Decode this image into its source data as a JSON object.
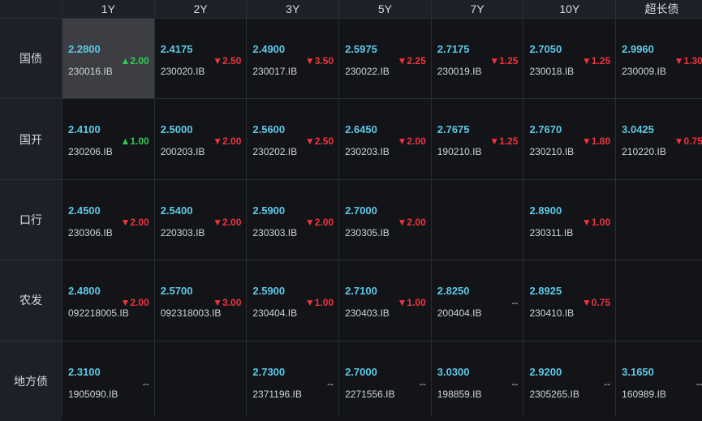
{
  "columns": [
    "1Y",
    "2Y",
    "3Y",
    "5Y",
    "7Y",
    "10Y",
    "超长债"
  ],
  "rows": [
    {
      "label": "国债",
      "cells": [
        {
          "yield": "2.2800",
          "code": "230016.IB",
          "change": "▲2.00",
          "dir": "up"
        },
        {
          "yield": "2.4175",
          "code": "230020.IB",
          "change": "▼2.50",
          "dir": "down"
        },
        {
          "yield": "2.4900",
          "code": "230017.IB",
          "change": "▼3.50",
          "dir": "down"
        },
        {
          "yield": "2.5975",
          "code": "230022.IB",
          "change": "▼2.25",
          "dir": "down"
        },
        {
          "yield": "2.7175",
          "code": "230019.IB",
          "change": "▼1.25",
          "dir": "down"
        },
        {
          "yield": "2.7050",
          "code": "230018.IB",
          "change": "▼1.25",
          "dir": "down"
        },
        {
          "yield": "2.9960",
          "code": "230009.IB",
          "change": "▼1.30",
          "dir": "down"
        }
      ]
    },
    {
      "label": "国开",
      "cells": [
        {
          "yield": "2.4100",
          "code": "230206.IB",
          "change": "▲1.00",
          "dir": "up"
        },
        {
          "yield": "2.5000",
          "code": "200203.IB",
          "change": "▼2.00",
          "dir": "down"
        },
        {
          "yield": "2.5600",
          "code": "230202.IB",
          "change": "▼2.50",
          "dir": "down"
        },
        {
          "yield": "2.6450",
          "code": "230203.IB",
          "change": "▼2.00",
          "dir": "down"
        },
        {
          "yield": "2.7675",
          "code": "190210.IB",
          "change": "▼1.25",
          "dir": "down"
        },
        {
          "yield": "2.7670",
          "code": "230210.IB",
          "change": "▼1.80",
          "dir": "down"
        },
        {
          "yield": "3.0425",
          "code": "210220.IB",
          "change": "▼0.75",
          "dir": "down"
        }
      ]
    },
    {
      "label": "口行",
      "cells": [
        {
          "yield": "2.4500",
          "code": "230306.IB",
          "change": "▼2.00",
          "dir": "down"
        },
        {
          "yield": "2.5400",
          "code": "220303.IB",
          "change": "▼2.00",
          "dir": "down"
        },
        {
          "yield": "2.5900",
          "code": "230303.IB",
          "change": "▼2.00",
          "dir": "down"
        },
        {
          "yield": "2.7000",
          "code": "230305.IB",
          "change": "▼2.00",
          "dir": "down"
        },
        null,
        {
          "yield": "2.8900",
          "code": "230311.IB",
          "change": "▼1.00",
          "dir": "down"
        },
        null
      ]
    },
    {
      "label": "农发",
      "cells": [
        {
          "yield": "2.4800",
          "code": "092218005.IB",
          "change": "▼2.00",
          "dir": "down"
        },
        {
          "yield": "2.5700",
          "code": "092318003.IB",
          "change": "▼3.00",
          "dir": "down"
        },
        {
          "yield": "2.5900",
          "code": "230404.IB",
          "change": "▼1.00",
          "dir": "down"
        },
        {
          "yield": "2.7100",
          "code": "230403.IB",
          "change": "▼1.00",
          "dir": "down"
        },
        {
          "yield": "2.8250",
          "code": "200404.IB",
          "change": "--",
          "dir": "flat"
        },
        {
          "yield": "2.8925",
          "code": "230410.IB",
          "change": "▼0.75",
          "dir": "down"
        },
        null
      ]
    },
    {
      "label": "地方债",
      "cells": [
        {
          "yield": "2.3100",
          "code": "1905090.IB",
          "change": "--",
          "dir": "flat"
        },
        null,
        {
          "yield": "2.7300",
          "code": "2371196.IB",
          "change": "--",
          "dir": "flat"
        },
        {
          "yield": "2.7000",
          "code": "2271556.IB",
          "change": "--",
          "dir": "flat"
        },
        {
          "yield": "3.0300",
          "code": "198859.IB",
          "change": "--",
          "dir": "flat"
        },
        {
          "yield": "2.9200",
          "code": "2305265.IB",
          "change": "--",
          "dir": "flat"
        },
        {
          "yield": "3.1650",
          "code": "160989.IB",
          "change": "--",
          "dir": "flat"
        }
      ]
    }
  ],
  "selected": {
    "row": 0,
    "col": 0
  },
  "colors": {
    "up": "#2ecc52",
    "down": "#f0333f",
    "yield": "#5ec8e6"
  }
}
